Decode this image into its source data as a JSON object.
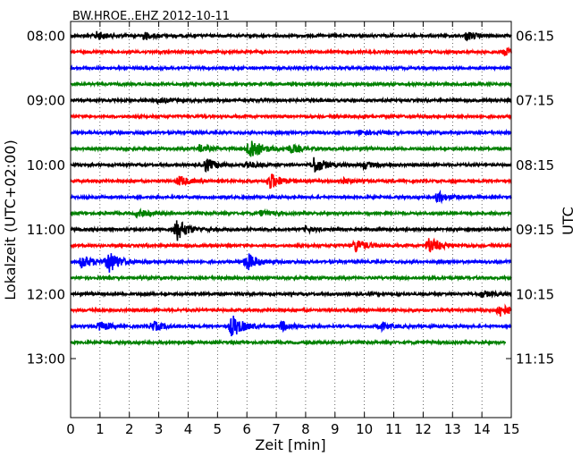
{
  "chart_data": {
    "type": "line",
    "title": "BW.HROE..EHZ 2012-10-11",
    "xlabel": "Zeit  [min]",
    "ylabel_left": "Lokalzeit (UTC+02:00)",
    "ylabel_right": "UTC",
    "xlim": [
      0,
      15
    ],
    "x_ticks": [
      "0",
      "1",
      "2",
      "3",
      "4",
      "5",
      "6",
      "7",
      "8",
      "9",
      "10",
      "11",
      "12",
      "13",
      "14",
      "15"
    ],
    "y_ticks_left": [
      "08:00",
      "09:00",
      "10:00",
      "11:00",
      "12:00",
      "13:00"
    ],
    "y_ticks_right": [
      "06:15",
      "07:15",
      "08:15",
      "09:15",
      "10:15",
      "11:15"
    ],
    "grid": "vertical dotted",
    "trace_colors": [
      "#000000",
      "#ff0000",
      "#0000ff",
      "#008000"
    ],
    "traces": [
      {
        "start": "08:00",
        "events": [
          {
            "t": 0.9,
            "a": 0.5
          },
          {
            "t": 2.5,
            "a": 0.4
          },
          {
            "t": 13.5,
            "a": 0.5
          }
        ]
      },
      {
        "start": "08:15",
        "events": [
          {
            "t": 14.8,
            "a": 0.5
          }
        ]
      },
      {
        "start": "08:30",
        "events": []
      },
      {
        "start": "08:45",
        "events": []
      },
      {
        "start": "09:00",
        "events": [
          {
            "t": 3.0,
            "a": 0.3
          }
        ]
      },
      {
        "start": "09:15",
        "events": []
      },
      {
        "start": "09:30",
        "events": [
          {
            "t": 9.9,
            "a": 0.3
          }
        ]
      },
      {
        "start": "09:45",
        "events": [
          {
            "t": 4.4,
            "a": 0.4
          },
          {
            "t": 6.1,
            "a": 1.5
          },
          {
            "t": 7.5,
            "a": 0.5
          }
        ]
      },
      {
        "start": "10:00",
        "events": [
          {
            "t": 4.6,
            "a": 0.8
          },
          {
            "t": 6.0,
            "a": 0.4
          },
          {
            "t": 8.3,
            "a": 1.0
          },
          {
            "t": 10.0,
            "a": 0.4
          }
        ]
      },
      {
        "start": "10:15",
        "events": [
          {
            "t": 3.7,
            "a": 0.6
          },
          {
            "t": 6.8,
            "a": 1.0
          },
          {
            "t": 9.2,
            "a": 0.4
          }
        ]
      },
      {
        "start": "10:30",
        "events": [
          {
            "t": 12.5,
            "a": 0.6
          }
        ]
      },
      {
        "start": "10:45",
        "events": [
          {
            "t": 2.3,
            "a": 0.4
          },
          {
            "t": 6.5,
            "a": 0.3
          }
        ]
      },
      {
        "start": "11:00",
        "events": [
          {
            "t": 3.6,
            "a": 1.4
          },
          {
            "t": 8.0,
            "a": 0.3
          }
        ]
      },
      {
        "start": "11:15",
        "events": [
          {
            "t": 9.7,
            "a": 0.8
          },
          {
            "t": 12.2,
            "a": 1.0
          }
        ]
      },
      {
        "start": "11:30",
        "events": [
          {
            "t": 0.4,
            "a": 0.8
          },
          {
            "t": 1.3,
            "a": 1.3
          },
          {
            "t": 6.0,
            "a": 1.1
          }
        ]
      },
      {
        "start": "11:45",
        "events": []
      },
      {
        "start": "12:00",
        "events": [
          {
            "t": 14.0,
            "a": 0.4
          }
        ]
      },
      {
        "start": "12:15",
        "events": [
          {
            "t": 14.6,
            "a": 0.8
          }
        ]
      },
      {
        "start": "12:30",
        "events": [
          {
            "t": 1.0,
            "a": 0.5
          },
          {
            "t": 2.8,
            "a": 0.6
          },
          {
            "t": 5.5,
            "a": 1.4
          },
          {
            "t": 7.2,
            "a": 0.5
          },
          {
            "t": 10.5,
            "a": 0.5
          }
        ]
      },
      {
        "start": "12:45",
        "events": [],
        "end_x": 14.8
      }
    ]
  }
}
